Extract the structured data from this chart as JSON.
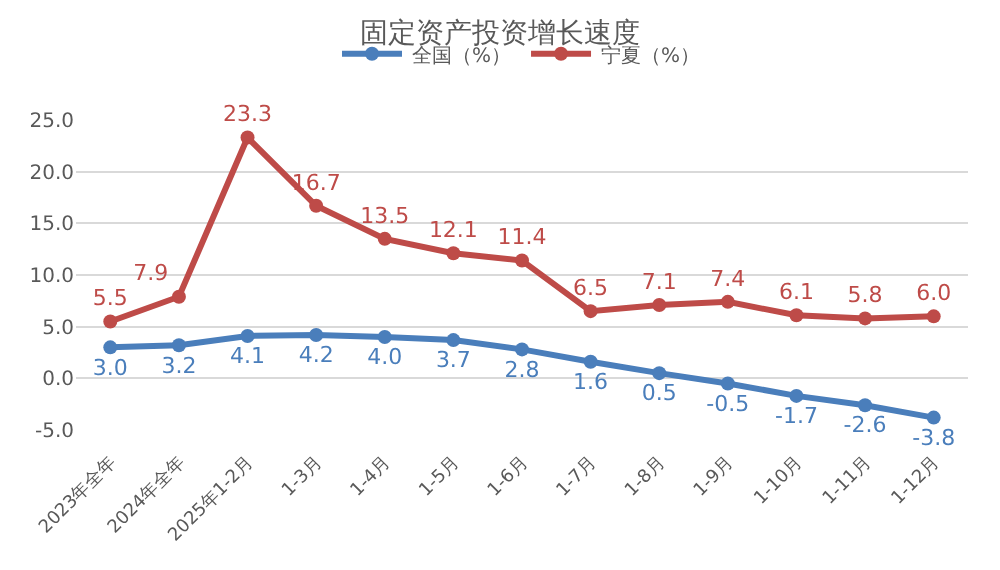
{
  "chart_data": {
    "type": "line",
    "title": "固定资产投资增长速度",
    "categories": [
      "2023年全年",
      "2024年全年",
      "2025年1-2月",
      "1-3月",
      "1-4月",
      "1-5月",
      "1-6月",
      "1-7月",
      "1-8月",
      "1-9月",
      "1-10月",
      "1-11月",
      "1-12月"
    ],
    "series": [
      {
        "name": "全国（%）",
        "color": "#4a7ebb",
        "values": [
          3.0,
          3.2,
          4.1,
          4.2,
          4.0,
          3.7,
          2.8,
          1.6,
          0.5,
          -0.5,
          -1.7,
          -2.6,
          -3.8
        ],
        "value_labels": [
          "3.0",
          "3.2",
          "4.1",
          "4.2",
          "4.0",
          "3.7",
          "2.8",
          "1.6",
          "0.5",
          "-0.5",
          "-1.7",
          "-2.6",
          "-3.8"
        ]
      },
      {
        "name": "宁夏（%）",
        "color": "#be4b48",
        "values": [
          5.5,
          7.9,
          23.3,
          16.7,
          13.5,
          12.1,
          11.4,
          6.5,
          7.1,
          7.4,
          6.1,
          5.8,
          6.0
        ],
        "value_labels": [
          "5.5",
          "7.9",
          "23.3",
          "16.7",
          "13.5",
          "12.1",
          "11.4",
          "6.5",
          "7.1",
          "7.4",
          "6.1",
          "5.8",
          "6.0"
        ]
      }
    ],
    "ylim": [
      -5,
      25
    ],
    "yticks": [
      {
        "value": -5,
        "label": "-5.0"
      },
      {
        "value": 0,
        "label": "0.0"
      },
      {
        "value": 5,
        "label": "5.0"
      },
      {
        "value": 10,
        "label": "10.0"
      },
      {
        "value": 15,
        "label": "15.0"
      },
      {
        "value": 20,
        "label": "20.0"
      },
      {
        "value": 25,
        "label": "25.0"
      }
    ],
    "grid": "y",
    "legend": "top",
    "marker": "circle",
    "line_style": "solid"
  }
}
